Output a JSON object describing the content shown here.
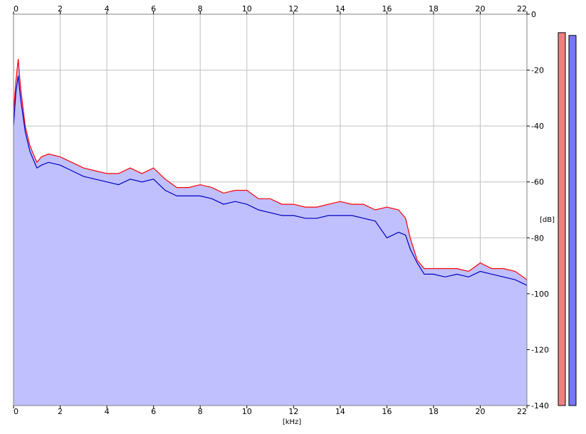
{
  "chart_data": {
    "type": "area",
    "xlabel": "[kHz]",
    "ylabel": "[dB]",
    "xlim": [
      0,
      22
    ],
    "ylim": [
      -140,
      0
    ],
    "x_ticks": [
      "0",
      "2",
      "4",
      "6",
      "8",
      "10",
      "12",
      "14",
      "16",
      "18",
      "20",
      "22"
    ],
    "y_ticks": [
      "0",
      "-20",
      "-40",
      "-60",
      "-80",
      "-100",
      "-120",
      "-140"
    ],
    "grid": true,
    "series": [
      {
        "color": "#ff0000",
        "x": [
          0,
          0.1,
          0.2,
          0.3,
          0.5,
          0.7,
          1,
          1.2,
          1.5,
          2,
          2.5,
          3,
          3.5,
          4,
          4.5,
          5,
          5.5,
          6,
          6.5,
          7,
          7.5,
          8,
          8.5,
          9,
          9.5,
          10,
          10.5,
          11,
          11.5,
          12,
          12.5,
          13,
          13.5,
          14,
          14.5,
          15,
          15.5,
          16,
          16.5,
          16.8,
          17,
          17.3,
          17.6,
          18,
          18.5,
          19,
          19.5,
          20,
          20.5,
          21,
          21.5,
          22
        ],
        "values": [
          -35,
          -24,
          -16,
          -26,
          -40,
          -47,
          -53,
          -51,
          -50,
          -51,
          -53,
          -55,
          -56,
          -57,
          -57,
          -55,
          -57,
          -55,
          -59,
          -62,
          -62,
          -61,
          -62,
          -64,
          -63,
          -63,
          -66,
          -66,
          -68,
          -68,
          -69,
          -69,
          -68,
          -67,
          -68,
          -68,
          -70,
          -69,
          -70,
          -73,
          -80,
          -88,
          -91,
          -91,
          -91,
          -91,
          -92,
          -89,
          -91,
          -91,
          -92,
          -95
        ]
      },
      {
        "color": "#0000c0",
        "x": [
          0,
          0.1,
          0.2,
          0.3,
          0.5,
          0.7,
          1,
          1.2,
          1.5,
          2,
          2.5,
          3,
          3.5,
          4,
          4.5,
          5,
          5.5,
          6,
          6.5,
          7,
          7.5,
          8,
          8.5,
          9,
          9.5,
          10,
          10.5,
          11,
          11.5,
          12,
          12.5,
          13,
          13.5,
          14,
          14.5,
          15,
          15.5,
          16,
          16.5,
          16.8,
          17,
          17.3,
          17.6,
          18,
          18.5,
          19,
          19.5,
          20,
          20.5,
          21,
          21.5,
          22
        ],
        "values": [
          -40,
          -28,
          -22,
          -30,
          -42,
          -49,
          -55,
          -54,
          -53,
          -54,
          -56,
          -58,
          -59,
          -60,
          -61,
          -59,
          -60,
          -59,
          -63,
          -65,
          -65,
          -65,
          -66,
          -68,
          -67,
          -68,
          -70,
          -71,
          -72,
          -72,
          -73,
          -73,
          -72,
          -72,
          -72,
          -73,
          -74,
          -80,
          -78,
          -79,
          -84,
          -89,
          -93,
          -93,
          -94,
          -93,
          -94,
          -92,
          -93,
          -94,
          -95,
          -97
        ]
      }
    ],
    "level_meters": [
      {
        "color": "#f08080",
        "level_db": -1.5
      },
      {
        "color": "#7777ff",
        "level_db": -2.5
      }
    ],
    "fill_color": "#c0c0ff",
    "grid_color": "#c0c0c0"
  }
}
